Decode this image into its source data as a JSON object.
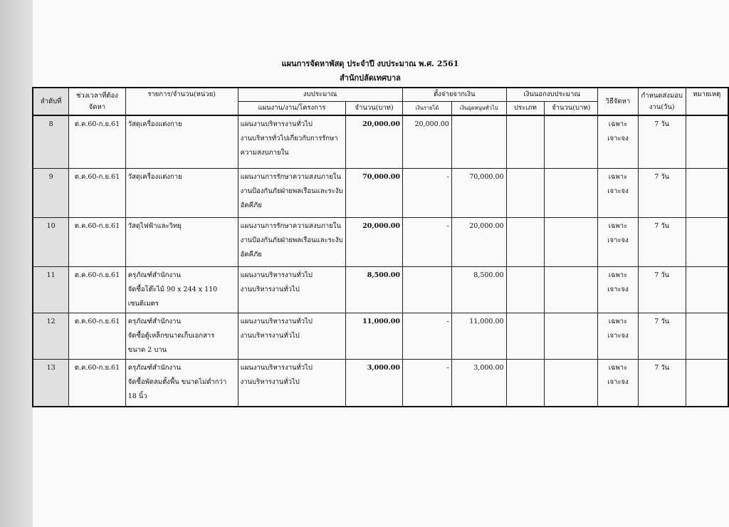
{
  "title": "แผนการจัดหาพัสดุ ประจำปี งบประมาณ พ.ศ. 2561",
  "subtitle": "สำนักปลัดเทศบาล",
  "headers": {
    "no": "ลำดับที่",
    "period": "ช่วงเวลาที่ต้องจัดหา",
    "item": "รายการ/จำนวน(หน่วย)",
    "budget": "งบประมาณ",
    "plan": "แผนงาน/งาน/โครงการ",
    "amount": "จำนวน(บาท)",
    "source": "ตั้งจ่ายจากเงิน",
    "income": "เงินรายได้",
    "subsidy": "เงินอุดหนุนทั่วไป",
    "offbudget": "เงินนอกงบประมาณ",
    "type": "ประเภท",
    "off_amount": "จำนวน(บาท)",
    "method": "วิธีจัดหา",
    "deadline": "กำหนดส่งมอบงาน(วัน)",
    "remark": "หมายเหตุ"
  },
  "rows": [
    {
      "no": "8",
      "period": "ต.ค.60-ก.ย.61",
      "item": [
        "วัสดุเครื่องแต่งกาย"
      ],
      "plan": [
        "แผนงานบริหารงานทั่วไป",
        "งานบริหารทั่วไปเกี่ยวกับการรักษา",
        "ความสงบภายใน"
      ],
      "amount": "20,000.00",
      "income": "20,000.00",
      "subsidy": "",
      "type": "",
      "off_amount": "",
      "method": "เฉพาะเจาะจง",
      "deadline": "7 วัน",
      "remark": ""
    },
    {
      "no": "9",
      "period": "ต.ค.60-ก.ย.61",
      "item": [
        "วัสดุเครื่องแต่งกาย"
      ],
      "plan": [
        "แผนงานการรักษาความสงบภายใน",
        "งานป้องกันภัยฝ่ายพลเรือนและระงับ",
        "อัคคีภัย"
      ],
      "amount": "70,000.00",
      "income": "-",
      "subsidy": "70,000.00",
      "type": "",
      "off_amount": "",
      "method": "เฉพาะเจาะจง",
      "deadline": "7 วัน",
      "remark": ""
    },
    {
      "no": "10",
      "period": "ต.ค.60-ก.ย.61",
      "item": [
        "วัสดุไฟฟ้าและวิทยุ"
      ],
      "plan": [
        "แผนงานการรักษาความสงบภายใน",
        "งานป้องกันภัยฝ่ายพลเรือนและระงับ",
        "อัคคีภัย"
      ],
      "amount": "20,000.00",
      "income": "-",
      "subsidy": "20,000.00",
      "type": "",
      "off_amount": "",
      "method": "เฉพาะเจาะจง",
      "deadline": "7 วัน",
      "remark": ""
    },
    {
      "no": "11",
      "period": "ต.ค.60-ก.ย.61",
      "item": [
        "ครุภัณฑ์สำนักงาน",
        "จัดซื้อโต๊ะไม้ 90 x 244 x 110",
        "เซนติเมตร"
      ],
      "plan": [
        "แผนงานบริหารงานทั่วไป",
        "งานบริหารงานทั่วไป"
      ],
      "amount": "8,500.00",
      "income": "",
      "subsidy": "8,500.00",
      "type": "",
      "off_amount": "",
      "method": "เฉพาะเจาะจง",
      "deadline": "7 วัน",
      "remark": ""
    },
    {
      "no": "12",
      "period": "ต.ค.60-ก.ย.61",
      "item": [
        "ครุภัณฑ์สำนักงาน",
        "จัดซื้อตู้เหล็กขนาดเก็บเอกสาร",
        "ขนาด 2 บาน"
      ],
      "plan": [
        "แผนงานบริหารงานทั่วไป",
        "งานบริหารงานทั่วไป"
      ],
      "amount": "11,000.00",
      "income": "-",
      "subsidy": "11,000.00",
      "type": "",
      "off_amount": "",
      "method": "เฉพาะเจาะจง",
      "deadline": "7 วัน",
      "remark": ""
    },
    {
      "no": "13",
      "period": "ต.ค.60-ก.ย.61",
      "item": [
        "ครุภัณฑ์สำนักงาน",
        "จัดซื้อพัดลมตั้งพื้น ขนาดไม่ต่ำกว่า",
        "18 นิ้ว"
      ],
      "plan": [
        "แผนงานบริหารงานทั่วไป",
        "งานบริหารงานทั่วไป"
      ],
      "amount": "3,000.00",
      "income": "-",
      "subsidy": "3,000.00",
      "type": "",
      "off_amount": "",
      "method": "เฉพาะเจาะจง",
      "deadline": "7 วัน",
      "remark": ""
    }
  ]
}
